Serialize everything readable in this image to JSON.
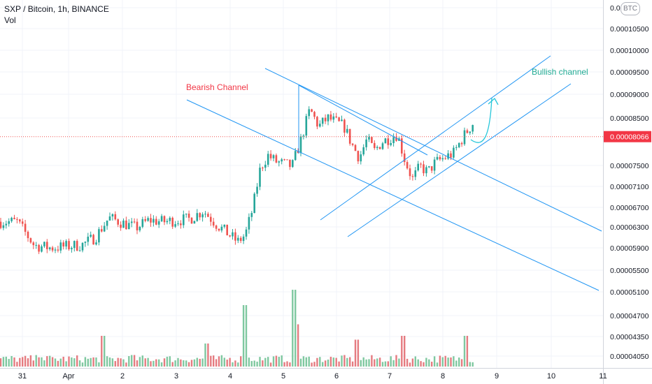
{
  "header": {
    "symbol": "SXP / Bitcoin, 1h, BINANCE",
    "volume_label": "Vol",
    "currency_badge": "BTC"
  },
  "price_badge": "0.00008066",
  "annotations": {
    "bearish": "Bearish Channel",
    "bullish": "Bullish channel"
  },
  "colors": {
    "up": "#26a69a",
    "down": "#ef5350",
    "vol_up": "#7fc8a0",
    "vol_down": "#e57b80",
    "channel": "#2196f3",
    "bearish_text": "#f23645",
    "bullish_text": "#22ab94",
    "badge_bg": "#f23645"
  },
  "chart_data": {
    "type": "candlestick",
    "title": "SXP / Bitcoin, 1h, BINANCE",
    "x_tick_labels": [
      "31",
      "Apr",
      "2",
      "3",
      "4",
      "5",
      "6",
      "7",
      "8",
      "9",
      "10",
      "11"
    ],
    "y_tick_labels": [
      "0.0",
      "0.00010500",
      "0.00010000",
      "0.00009500",
      "0.00009000",
      "0.00008500",
      "0.00007500",
      "0.00007100",
      "0.00006700",
      "0.00006300",
      "0.00005900",
      "0.00005500",
      "0.00005100",
      "0.00004700",
      "0.00004350",
      "0.00004050"
    ],
    "y_scale": "log",
    "last_price": 8.066e-05,
    "series": [
      {
        "kind": "price",
        "anchors": [
          [
            "31",
            6.35e-05
          ],
          [
            "31",
            5.94e-05
          ],
          [
            "31",
            5.9e-05
          ],
          [
            "Apr",
            5.95e-05
          ],
          [
            "Apr",
            6.08e-05
          ],
          [
            "Apr",
            6.42e-05
          ],
          [
            "2",
            6.24e-05
          ],
          [
            "2",
            6.38e-05
          ],
          [
            "2",
            6.35e-05
          ],
          [
            "3",
            6.4e-05
          ],
          [
            "3",
            6.55e-05
          ],
          [
            "3",
            6.3e-05
          ],
          [
            "4",
            6e-05
          ],
          [
            "4",
            6.12e-05
          ],
          [
            "4",
            6.6e-05
          ],
          [
            "4",
            7.4e-05
          ],
          [
            "4",
            7.65e-05
          ],
          [
            "4",
            7.52e-05
          ],
          [
            "5",
            7.42e-05
          ],
          [
            "5",
            8e-05
          ],
          [
            "5",
            8.7e-05
          ],
          [
            "5",
            8.3e-05
          ],
          [
            "5",
            8.5e-05
          ],
          [
            "6",
            8.3e-05
          ],
          [
            "6",
            7.9e-05
          ],
          [
            "6",
            7.6e-05
          ],
          [
            "6",
            8e-05
          ],
          [
            "6",
            7.75e-05
          ],
          [
            "6",
            7.95e-05
          ],
          [
            "7",
            8.12e-05
          ],
          [
            "7",
            7.55e-05
          ],
          [
            "7",
            7.15e-05
          ],
          [
            "7",
            7.42e-05
          ],
          [
            "7",
            7.3e-05
          ],
          [
            "7",
            7.5e-05
          ],
          [
            "8",
            7.7e-05
          ],
          [
            "8",
            8.1e-05
          ],
          [
            "8",
            8.45e-05
          ],
          [
            "8",
            8.08e-05
          ]
        ]
      },
      {
        "kind": "volume",
        "spikes": [
          [
            "31",
            0.12
          ],
          [
            "Apr",
            0.4
          ],
          [
            "2",
            0.15
          ],
          [
            "3",
            0.3
          ],
          [
            "4",
            0.55
          ],
          [
            "4",
            0.8
          ],
          [
            "5",
            1.0
          ],
          [
            "5",
            0.55
          ],
          [
            "6",
            0.35
          ],
          [
            "7",
            0.4
          ],
          [
            "8",
            0.4
          ]
        ]
      }
    ],
    "drawings": [
      {
        "kind": "channel",
        "label": "Bearish Channel",
        "lines": [
          [
            [
              267,
              143
            ],
            [
              856,
              416
            ]
          ],
          [
            [
              379,
              98
            ],
            [
              860,
              331
            ]
          ],
          [
            [
              427,
              122
            ],
            [
              611,
              222
            ]
          ]
        ]
      },
      {
        "kind": "channel",
        "label": "Bullish channel",
        "lines": [
          [
            [
              458,
              315
            ],
            [
              787,
              80
            ]
          ],
          [
            [
              497,
              339
            ],
            [
              816,
              120
            ]
          ],
          [
            [
              427,
              122
            ],
            [
              427,
              220
            ]
          ]
        ]
      },
      {
        "kind": "projection_arrow",
        "direction": "up"
      }
    ]
  }
}
